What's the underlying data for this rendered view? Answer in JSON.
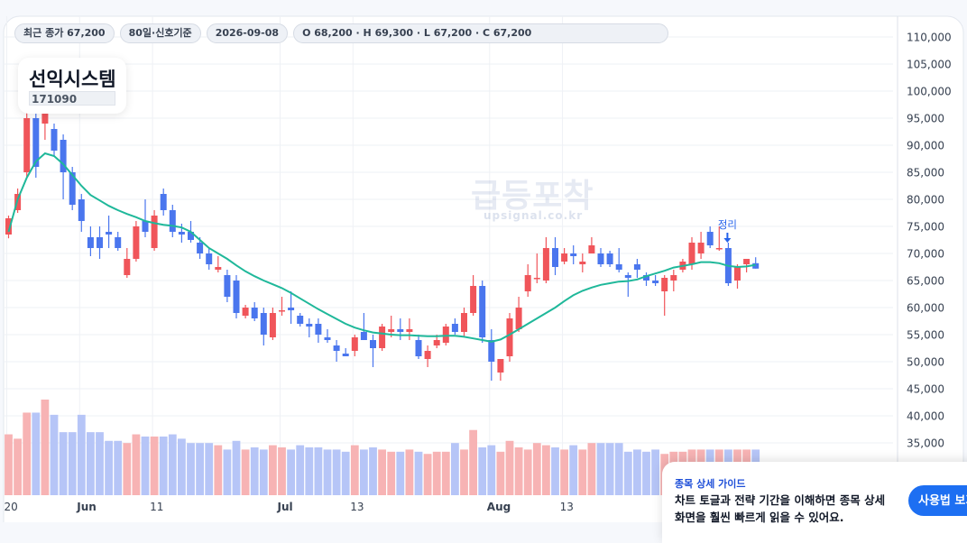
{
  "header": {
    "close_chip": "최근 종가 67,200",
    "period_chip": "80일·신호기준",
    "date_chip": "2026-09-08",
    "ohlc_chip": "O 68,200 · H 69,300 · L 67,200 · C 67,200"
  },
  "stock": {
    "name": "선익시스템",
    "code": "171090"
  },
  "watermark": {
    "main": "급등포착",
    "sub": "upsignal.co.kr"
  },
  "guide": {
    "title": "종목 상세 가이드",
    "text": "차트 토글과 전략 기간을 이해하면 종목 상세 화면을 훨씬 빠르게 읽을 수 있어요.",
    "button": "사용법 보기"
  },
  "colors": {
    "up": "#f0555a",
    "down": "#4a76ee",
    "ma": "#1fb89a",
    "volume_up": "#f7b3b4",
    "volume_down": "#b6c5f7"
  },
  "chart_data": {
    "type": "candlestick",
    "x_tick_labels": [
      {
        "label": "20",
        "index": 0
      },
      {
        "label": "Jun",
        "index": 8
      },
      {
        "label": "11",
        "index": 16
      },
      {
        "label": "Jul",
        "index": 30
      },
      {
        "label": "13",
        "index": 38
      },
      {
        "label": "Aug",
        "index": 53
      },
      {
        "label": "13",
        "index": 61
      }
    ],
    "y_ticks": [
      "35,000",
      "40,000",
      "45,000",
      "50,000",
      "55,000",
      "60,000",
      "65,000",
      "70,000",
      "75,000",
      "80,000",
      "85,000",
      "90,000",
      "95,000",
      "100,000",
      "105,000",
      "110,000"
    ],
    "ylim": [
      30000,
      112000
    ],
    "annotation": {
      "label": "정리",
      "index": 79
    },
    "ohlc": [
      [
        73500,
        77000,
        72800,
        76500
      ],
      [
        78000,
        82000,
        77500,
        81000
      ],
      [
        85000,
        97000,
        84000,
        95000
      ],
      [
        95000,
        98000,
        84000,
        86000
      ],
      [
        94000,
        97000,
        91000,
        96000
      ],
      [
        93000,
        94000,
        88000,
        89000
      ],
      [
        91000,
        92000,
        80000,
        85000
      ],
      [
        85000,
        86000,
        78000,
        79000
      ],
      [
        80000,
        81000,
        74000,
        76000
      ],
      [
        73000,
        75000,
        69500,
        71000
      ],
      [
        73000,
        75000,
        69000,
        71000
      ],
      [
        74000,
        77000,
        71000,
        73500
      ],
      [
        73000,
        74000,
        70500,
        71000
      ],
      [
        66000,
        71000,
        65500,
        69000
      ],
      [
        69000,
        76000,
        68500,
        75000
      ],
      [
        76000,
        80000,
        73000,
        74000
      ],
      [
        71000,
        78000,
        70500,
        77000
      ],
      [
        81000,
        82000,
        77000,
        78000
      ],
      [
        78000,
        79000,
        73000,
        74000
      ],
      [
        74000,
        75500,
        72000,
        73500
      ],
      [
        74000,
        76000,
        72000,
        72500
      ],
      [
        72000,
        73000,
        69000,
        70000
      ],
      [
        70000,
        71000,
        67000,
        68000
      ],
      [
        67000,
        69500,
        66500,
        67500
      ],
      [
        66000,
        67000,
        61000,
        62000
      ],
      [
        65000,
        66000,
        58000,
        59000
      ],
      [
        58500,
        60500,
        58000,
        60000
      ],
      [
        60000,
        61000,
        57500,
        58000
      ],
      [
        59000,
        60000,
        53000,
        55000
      ],
      [
        54500,
        60000,
        54000,
        59000
      ],
      [
        59500,
        62000,
        58500,
        59500
      ],
      [
        60000,
        63000,
        57000,
        59500
      ],
      [
        58500,
        59000,
        56500,
        57000
      ],
      [
        57000,
        58000,
        54500,
        56500
      ],
      [
        57000,
        58000,
        53500,
        55000
      ],
      [
        54500,
        56000,
        53500,
        54000
      ],
      [
        53000,
        54000,
        50000,
        52000
      ],
      [
        51500,
        52500,
        51000,
        51000
      ],
      [
        52000,
        55000,
        51000,
        54500
      ],
      [
        55500,
        59000,
        54500,
        54000
      ],
      [
        54000,
        55000,
        49000,
        52500
      ],
      [
        52500,
        57000,
        52000,
        56500
      ],
      [
        55500,
        58500,
        54500,
        56000
      ],
      [
        56000,
        58000,
        54000,
        55500
      ],
      [
        55500,
        58000,
        54000,
        56000
      ],
      [
        54000,
        55000,
        50500,
        51000
      ],
      [
        50500,
        53000,
        49000,
        52000
      ],
      [
        53000,
        55000,
        52500,
        54000
      ],
      [
        53500,
        57000,
        53000,
        56500
      ],
      [
        57000,
        58000,
        55000,
        55500
      ],
      [
        55500,
        60000,
        54500,
        59000
      ],
      [
        59000,
        66000,
        58500,
        64000
      ],
      [
        64000,
        65000,
        53500,
        54500
      ],
      [
        54000,
        56000,
        46500,
        50000
      ],
      [
        48000,
        50000,
        46500,
        50500
      ],
      [
        51000,
        59000,
        50000,
        58000
      ],
      [
        56000,
        62000,
        55500,
        60000
      ],
      [
        63000,
        68000,
        62000,
        66000
      ],
      [
        65500,
        70000,
        64500,
        65500
      ],
      [
        65000,
        73000,
        64500,
        71000
      ],
      [
        71000,
        73000,
        66000,
        67500
      ],
      [
        68500,
        71000,
        68000,
        70000
      ],
      [
        70000,
        71500,
        68000,
        69500
      ],
      [
        68000,
        70000,
        66500,
        68500
      ],
      [
        70000,
        73000,
        70000,
        71500
      ],
      [
        70000,
        71000,
        67500,
        68000
      ],
      [
        70000,
        70500,
        67500,
        68000
      ],
      [
        68000,
        71000,
        66500,
        67000
      ],
      [
        66000,
        66500,
        62000,
        65500
      ],
      [
        68000,
        69000,
        65500,
        67000
      ],
      [
        66000,
        66500,
        64000,
        65000
      ],
      [
        65000,
        66000,
        64000,
        64500
      ],
      [
        63000,
        66000,
        58500,
        65500
      ],
      [
        65000,
        67000,
        63000,
        66000
      ],
      [
        67000,
        69000,
        66500,
        68500
      ],
      [
        68000,
        73000,
        67000,
        72000
      ],
      [
        70000,
        74000,
        69000,
        72000
      ],
      [
        74000,
        75000,
        71000,
        71500
      ],
      [
        71000,
        75000,
        70500,
        71000
      ],
      [
        71000,
        72000,
        64000,
        64500
      ],
      [
        65000,
        68000,
        63500,
        67500
      ],
      [
        68000,
        69000,
        66500,
        69000
      ],
      [
        68200,
        69300,
        67200,
        67200
      ]
    ],
    "ma": [
      [
        0,
        74000
      ],
      [
        1,
        80000
      ],
      [
        2,
        84000
      ],
      [
        3,
        87000
      ],
      [
        4,
        88500
      ],
      [
        5,
        88000
      ],
      [
        6,
        86500
      ],
      [
        7,
        84500
      ],
      [
        8,
        82500
      ],
      [
        9,
        80800
      ],
      [
        10,
        79800
      ],
      [
        11,
        78800
      ],
      [
        12,
        78000
      ],
      [
        13,
        77300
      ],
      [
        14,
        76700
      ],
      [
        15,
        76000
      ],
      [
        16,
        75600
      ],
      [
        17,
        75300
      ],
      [
        18,
        75100
      ],
      [
        19,
        74800
      ],
      [
        20,
        74000
      ],
      [
        21,
        72500
      ],
      [
        22,
        71000
      ],
      [
        23,
        70000
      ],
      [
        24,
        69000
      ],
      [
        25,
        67800
      ],
      [
        26,
        66700
      ],
      [
        27,
        65800
      ],
      [
        28,
        65000
      ],
      [
        29,
        64300
      ],
      [
        30,
        63600
      ],
      [
        31,
        62700
      ],
      [
        32,
        61700
      ],
      [
        33,
        60700
      ],
      [
        34,
        59700
      ],
      [
        35,
        58800
      ],
      [
        36,
        57900
      ],
      [
        37,
        57000
      ],
      [
        38,
        56300
      ],
      [
        39,
        55800
      ],
      [
        40,
        55400
      ],
      [
        41,
        55200
      ],
      [
        42,
        55000
      ],
      [
        43,
        54900
      ],
      [
        44,
        54900
      ],
      [
        45,
        54800
      ],
      [
        46,
        54700
      ],
      [
        47,
        54700
      ],
      [
        48,
        54800
      ],
      [
        49,
        54800
      ],
      [
        50,
        54600
      ],
      [
        51,
        54300
      ],
      [
        52,
        54000
      ],
      [
        53,
        53700
      ],
      [
        54,
        54100
      ],
      [
        55,
        55000
      ],
      [
        56,
        56000
      ],
      [
        57,
        57000
      ],
      [
        58,
        58000
      ],
      [
        59,
        59000
      ],
      [
        60,
        60000
      ],
      [
        61,
        61200
      ],
      [
        62,
        62300
      ],
      [
        63,
        63100
      ],
      [
        64,
        63700
      ],
      [
        65,
        64200
      ],
      [
        66,
        64500
      ],
      [
        67,
        64800
      ],
      [
        68,
        64900
      ],
      [
        69,
        65200
      ],
      [
        70,
        65800
      ],
      [
        71,
        66300
      ],
      [
        72,
        66800
      ],
      [
        73,
        67400
      ],
      [
        74,
        67700
      ],
      [
        75,
        68000
      ],
      [
        76,
        68400
      ],
      [
        77,
        68400
      ],
      [
        78,
        68200
      ],
      [
        79,
        67700
      ],
      [
        80,
        67500
      ],
      [
        81,
        67600
      ],
      [
        82,
        67900
      ]
    ],
    "volume": [
      28,
      26,
      38,
      38,
      44,
      37,
      29,
      29,
      37,
      29,
      29,
      25,
      25,
      24,
      28,
      27,
      27,
      27,
      28,
      26,
      24,
      24,
      24,
      23,
      21,
      25,
      21,
      22,
      21,
      23,
      22,
      21,
      23,
      22,
      22,
      21,
      21,
      20,
      23,
      21,
      22,
      21,
      20,
      20,
      21,
      20,
      19,
      20,
      20,
      24,
      21,
      30,
      22,
      23,
      20,
      25,
      22,
      21,
      24,
      23,
      22,
      21,
      23,
      21,
      24,
      24,
      24,
      24,
      20,
      21,
      20,
      21,
      19,
      20,
      20,
      21,
      21,
      21,
      21,
      21,
      21,
      21,
      21
    ],
    "volume_max": 44
  }
}
